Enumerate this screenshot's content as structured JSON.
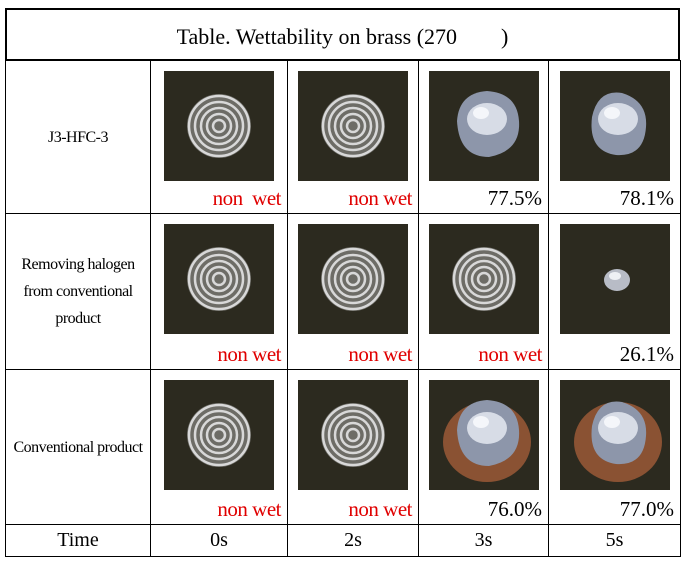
{
  "table": {
    "title": "Table. Wettability on brass (270　　)",
    "rows": [
      {
        "label": "J3-HFC-3",
        "cells": [
          "non  wet",
          "non wet",
          "77.5%",
          "78.1%"
        ]
      },
      {
        "label": "Removing halogen from conventional product",
        "cells": [
          "non wet",
          "non wet",
          "non wet",
          "26.1%"
        ]
      },
      {
        "label": "Conventional product",
        "cells": [
          "non wet",
          "non wet",
          "76.0%",
          "77.0%"
        ]
      }
    ],
    "time_row": {
      "label": "Time",
      "cells": [
        "0s",
        "2s",
        "3s",
        "5s"
      ]
    }
  }
}
